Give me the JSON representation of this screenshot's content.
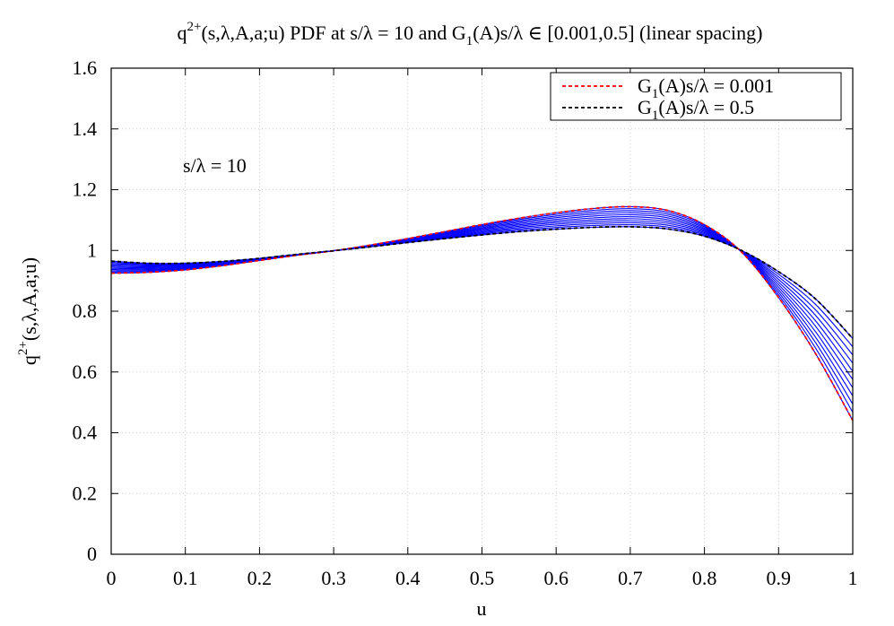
{
  "chart_data": {
    "type": "line",
    "title": {
      "main": "q",
      "main_sup": "2+",
      "main_rest": "(s,λ,A,a;u) PDF at s/λ = 10 and G",
      "main_sub": "1",
      "main_tail": "(A)s/λ ∈  [0.001,0.5] (linear spacing)"
    },
    "xlabel": "u",
    "ylabel": {
      "base": "q",
      "sup": "2+",
      "rest": "(s,λ,A,a;u)"
    },
    "xlim": [
      0,
      1
    ],
    "ylim": [
      0,
      1.6
    ],
    "x_ticks": [
      0,
      0.1,
      0.2,
      0.3,
      0.4,
      0.5,
      0.6,
      0.7,
      0.8,
      0.9,
      1
    ],
    "x_tick_labels": [
      "0",
      "0.1",
      "0.2",
      "0.3",
      "0.4",
      "0.5",
      "0.6",
      "0.7",
      "0.8",
      "0.9",
      "1"
    ],
    "y_ticks": [
      0,
      0.2,
      0.4,
      0.6,
      0.8,
      1,
      1.2,
      1.4,
      1.6
    ],
    "y_tick_labels": [
      "0",
      "0.2",
      "0.4",
      "0.6",
      "0.8",
      "1",
      "1.2",
      "1.4",
      "1.6"
    ],
    "grid": true,
    "legend_position": "top-right",
    "annotation": "s/λ = 10",
    "x": [
      0,
      0.05,
      0.1,
      0.15,
      0.2,
      0.25,
      0.3,
      0.35,
      0.4,
      0.45,
      0.5,
      0.55,
      0.6,
      0.65,
      0.7,
      0.75,
      0.8,
      0.85,
      0.9,
      0.95,
      1.0
    ],
    "series": [
      {
        "name": "G1(A)s/λ = 0.001",
        "legend": {
          "base": "G",
          "sub": "1",
          "rest": "(A)s/λ = 0.001"
        },
        "color": "#ff0000",
        "dash": true,
        "values": [
          0.925,
          0.928,
          0.936,
          0.95,
          0.967,
          0.984,
          0.999,
          1.018,
          1.039,
          1.062,
          1.085,
          1.106,
          1.124,
          1.138,
          1.144,
          1.132,
          1.085,
          0.995,
          0.845,
          0.66,
          0.44
        ]
      },
      {
        "name": "G1(A)s/λ = 0.5",
        "legend": {
          "base": "G",
          "sub": "1",
          "rest": "(A)s/λ = 0.5"
        },
        "color": "#000000",
        "dash": true,
        "values": [
          0.965,
          0.958,
          0.958,
          0.964,
          0.974,
          0.987,
          0.999,
          1.012,
          1.026,
          1.039,
          1.051,
          1.062,
          1.07,
          1.076,
          1.078,
          1.071,
          1.047,
          1.0,
          0.93,
          0.84,
          0.71
        ]
      }
    ],
    "band": {
      "color": "#0000ff",
      "count": 10
    }
  }
}
